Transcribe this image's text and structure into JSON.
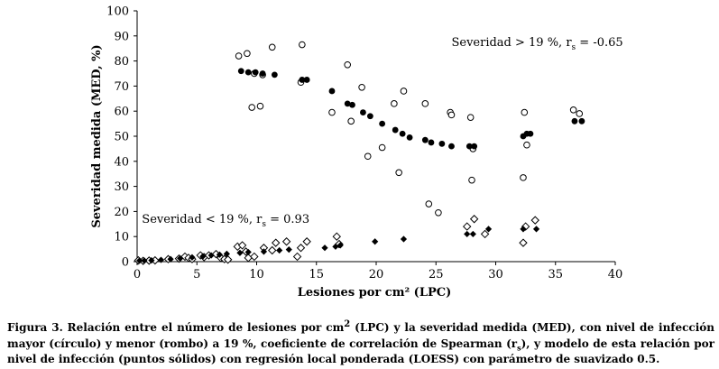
{
  "chart_data": {
    "type": "scatter",
    "xlabel": "Lesiones por cm² (LPC)",
    "ylabel": "Severidad medida (MED, %)",
    "xlim": [
      0,
      40
    ],
    "ylim": [
      0,
      100
    ],
    "xticks": [
      0,
      5,
      10,
      15,
      20,
      25,
      30,
      35,
      40
    ],
    "yticks": [
      0,
      10,
      20,
      30,
      40,
      50,
      60,
      70,
      80,
      90,
      100
    ],
    "grid": false,
    "annotations": [
      {
        "text": "Severidad > 19 %, r",
        "sub": "s",
        "tail": " = -0.65",
        "x": 26.3,
        "y": 86
      },
      {
        "text": "Severidad < 19 %, r",
        "sub": "s",
        "tail": " = 0.93",
        "x": 0.4,
        "y": 15.5
      }
    ],
    "series": [
      {
        "name": "Severidad > 19 % (observada)",
        "marker": "open-circle",
        "points": [
          [
            8.5,
            82
          ],
          [
            9.2,
            83
          ],
          [
            9.6,
            61.5
          ],
          [
            10.3,
            62
          ],
          [
            9.8,
            75
          ],
          [
            10.5,
            74.5
          ],
          [
            11.3,
            85.5
          ],
          [
            13.8,
            86.5
          ],
          [
            13.7,
            71.5
          ],
          [
            16.3,
            59.5
          ],
          [
            17.6,
            78.5
          ],
          [
            17.9,
            56
          ],
          [
            18.8,
            69.5
          ],
          [
            19.3,
            42
          ],
          [
            20.5,
            45.5
          ],
          [
            21.5,
            63
          ],
          [
            21.9,
            35.5
          ],
          [
            22.3,
            68
          ],
          [
            24.1,
            63
          ],
          [
            24.4,
            23
          ],
          [
            25.2,
            19.5
          ],
          [
            26.2,
            59.5
          ],
          [
            26.3,
            58.5
          ],
          [
            27.9,
            57.5
          ],
          [
            28.1,
            45
          ],
          [
            28.0,
            32.5
          ],
          [
            32.3,
            33.5
          ],
          [
            32.4,
            59.5
          ],
          [
            32.6,
            46.5
          ],
          [
            36.5,
            60.5
          ],
          [
            37.0,
            59
          ]
        ]
      },
      {
        "name": "Severidad > 19 % (LOESS)",
        "marker": "filled-circle",
        "points": [
          [
            8.7,
            76
          ],
          [
            9.3,
            75.5
          ],
          [
            9.9,
            75.5
          ],
          [
            10.5,
            75
          ],
          [
            11.5,
            74.5
          ],
          [
            13.8,
            72.5
          ],
          [
            14.2,
            72.5
          ],
          [
            16.3,
            68
          ],
          [
            17.6,
            63
          ],
          [
            18.0,
            62.5
          ],
          [
            18.9,
            59.5
          ],
          [
            19.5,
            58
          ],
          [
            20.5,
            55
          ],
          [
            21.6,
            52.5
          ],
          [
            22.2,
            51
          ],
          [
            22.8,
            49.5
          ],
          [
            24.1,
            48.5
          ],
          [
            24.6,
            47.5
          ],
          [
            25.5,
            47
          ],
          [
            26.3,
            46
          ],
          [
            27.8,
            46
          ],
          [
            28.2,
            46
          ],
          [
            32.3,
            50
          ],
          [
            32.6,
            51
          ],
          [
            32.9,
            51
          ],
          [
            36.6,
            56
          ],
          [
            37.2,
            56
          ]
        ]
      },
      {
        "name": "Severidad < 19 % (observada)",
        "marker": "open-diamond",
        "points": [
          [
            0.1,
            0.5
          ],
          [
            0.5,
            0.3
          ],
          [
            1.0,
            0.4
          ],
          [
            1.5,
            0.5
          ],
          [
            2.6,
            1.0
          ],
          [
            3.5,
            1.2
          ],
          [
            4.0,
            2.0
          ],
          [
            4.3,
            1.5
          ],
          [
            4.6,
            1.0
          ],
          [
            5.3,
            2.5
          ],
          [
            5.6,
            1.8
          ],
          [
            6.0,
            2.5
          ],
          [
            6.6,
            3.0
          ],
          [
            7.0,
            1.5
          ],
          [
            7.3,
            1.0
          ],
          [
            7.6,
            0.8
          ],
          [
            8.4,
            6.0
          ],
          [
            8.8,
            6.5
          ],
          [
            9.1,
            4.0
          ],
          [
            9.3,
            1.5
          ],
          [
            9.8,
            2.0
          ],
          [
            10.6,
            5.5
          ],
          [
            11.3,
            4.5
          ],
          [
            11.6,
            7.5
          ],
          [
            12.5,
            8.0
          ],
          [
            13.4,
            2.0
          ],
          [
            13.7,
            5.5
          ],
          [
            14.2,
            8.0
          ],
          [
            16.7,
            10.0
          ],
          [
            16.9,
            7.0
          ],
          [
            27.6,
            14.0
          ],
          [
            28.2,
            17.0
          ],
          [
            29.1,
            11.0
          ],
          [
            32.3,
            7.5
          ],
          [
            32.5,
            14.0
          ],
          [
            33.3,
            16.5
          ]
        ]
      },
      {
        "name": "Severidad < 19 % (LOESS)",
        "marker": "filled-diamond",
        "points": [
          [
            0.2,
            0.4
          ],
          [
            0.6,
            0.4
          ],
          [
            1.2,
            0.5
          ],
          [
            2.0,
            0.7
          ],
          [
            2.8,
            1.0
          ],
          [
            3.6,
            1.3
          ],
          [
            4.6,
            1.7
          ],
          [
            5.5,
            2.1
          ],
          [
            6.2,
            2.5
          ],
          [
            6.9,
            2.8
          ],
          [
            7.5,
            3.1
          ],
          [
            8.6,
            3.5
          ],
          [
            9.3,
            3.8
          ],
          [
            10.6,
            4.0
          ],
          [
            11.9,
            4.5
          ],
          [
            12.7,
            4.8
          ],
          [
            15.7,
            5.5
          ],
          [
            16.6,
            6.0
          ],
          [
            17.0,
            6.5
          ],
          [
            19.9,
            8.0
          ],
          [
            22.3,
            9.0
          ],
          [
            27.6,
            11.0
          ],
          [
            28.1,
            11.0
          ],
          [
            29.4,
            13.0
          ],
          [
            32.3,
            13.0
          ],
          [
            33.4,
            13.0
          ]
        ]
      }
    ]
  },
  "caption": {
    "lead": "Figura 3. Relación entre el número de lesiones por cm",
    "sup": "2",
    "mid": " (LPC) y la severidad medida (MED), con nivel de infección mayor (círculo) y menor (rombo) a 19 %, coeficiente de correlación de Spearman (r",
    "sub": "s",
    "tail": "), y modelo de esta relación por nivel de infección (puntos sólidos) con regresión local ponderada (LOESS) con parámetro de suavizado 0.5."
  }
}
